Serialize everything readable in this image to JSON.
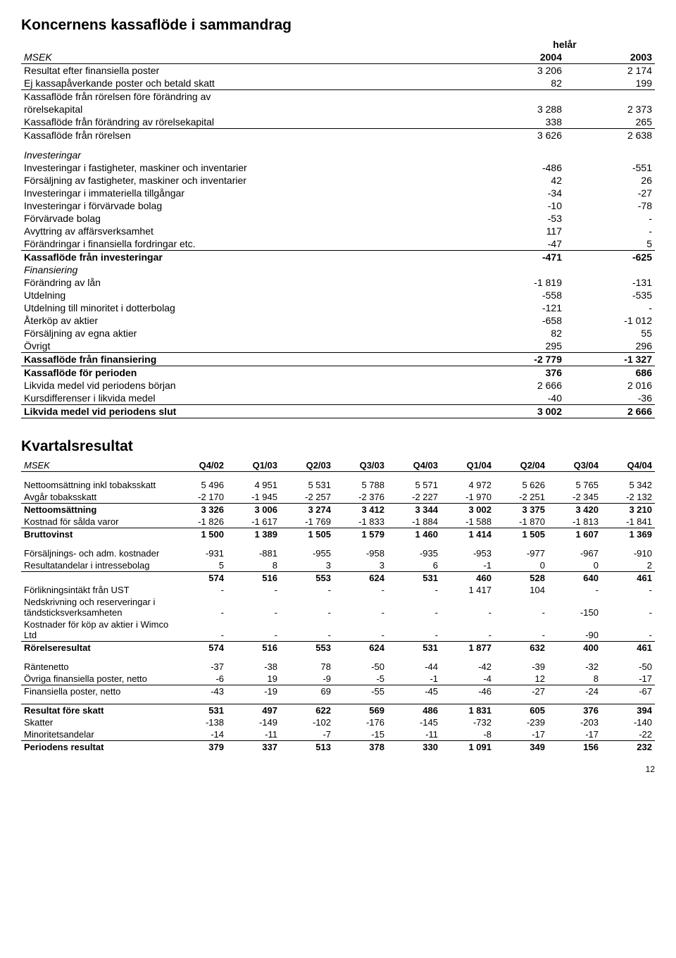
{
  "cashflow": {
    "title": "Koncernens kassaflöde i sammandrag",
    "period_header": "helår",
    "row_header": "MSEK",
    "col1": "2004",
    "col2": "2003",
    "rows": [
      {
        "label": "Resultat efter finansiella poster",
        "v": [
          "3 206",
          "2 174"
        ]
      },
      {
        "label": "Ej kassapåverkande poster och betald skatt",
        "v": [
          "82",
          "199"
        ],
        "under": true
      },
      {
        "label": "Kassaflöde från rörelsen före förändring av",
        "v": [
          "",
          ""
        ]
      },
      {
        "label": "rörelsekapital",
        "v": [
          "3 288",
          "2 373"
        ]
      },
      {
        "label": "Kassaflöde från förändring av rörelsekapital",
        "v": [
          "338",
          "265"
        ],
        "under": true
      },
      {
        "label": "Kassaflöde från rörelsen",
        "v": [
          "3 626",
          "2 638"
        ]
      },
      {
        "label": "Investeringar",
        "v": [
          "",
          ""
        ],
        "italic": true,
        "spacer_before": true
      },
      {
        "label": "Investeringar i fastigheter, maskiner och inventarier",
        "v": [
          "-486",
          "-551"
        ]
      },
      {
        "label": "Försäljning av fastigheter, maskiner och inventarier",
        "v": [
          "42",
          "26"
        ]
      },
      {
        "label": "Investeringar i immateriella tillgångar",
        "v": [
          "-34",
          "-27"
        ]
      },
      {
        "label": "Investeringar i förvärvade bolag",
        "v": [
          "-10",
          "-78"
        ]
      },
      {
        "label": "Förvärvade bolag",
        "v": [
          "-53",
          "-"
        ]
      },
      {
        "label": "Avyttring av affärsverksamhet",
        "v": [
          "117",
          "-"
        ]
      },
      {
        "label": "Förändringar i finansiella fordringar etc.",
        "v": [
          "-47",
          "5"
        ],
        "under": true
      },
      {
        "label": "Kassaflöde från investeringar",
        "v": [
          "-471",
          "-625"
        ],
        "bold": true
      },
      {
        "label": "Finansiering",
        "v": [
          "",
          ""
        ],
        "italic": true
      },
      {
        "label": "Förändring av lån",
        "v": [
          "-1 819",
          "-131"
        ]
      },
      {
        "label": "Utdelning",
        "v": [
          "-558",
          "-535"
        ]
      },
      {
        "label": "Utdelning till minoritet i dotterbolag",
        "v": [
          "-121",
          "-"
        ]
      },
      {
        "label": "Återköp av aktier",
        "v": [
          "-658",
          "-1 012"
        ]
      },
      {
        "label": "Försäljning av egna aktier",
        "v": [
          "82",
          "55"
        ]
      },
      {
        "label": "Övrigt",
        "v": [
          "295",
          "296"
        ],
        "under": true
      },
      {
        "label": "Kassaflöde från finansiering",
        "v": [
          "-2 779",
          "-1 327"
        ],
        "bold": true,
        "under": true
      },
      {
        "label": "Kassaflöde för perioden",
        "v": [
          "376",
          "686"
        ],
        "bold": true
      },
      {
        "label": "Likvida medel vid periodens början",
        "v": [
          "2 666",
          "2 016"
        ]
      },
      {
        "label": "Kursdifferenser i likvida medel",
        "v": [
          "-40",
          "-36"
        ],
        "under": true
      },
      {
        "label": "Likvida medel vid periodens slut",
        "v": [
          "3 002",
          "2 666"
        ],
        "bold": true,
        "under": true
      }
    ]
  },
  "quarterly": {
    "title": "Kvartalsresultat",
    "row_header": "MSEK",
    "cols": [
      "Q4/02",
      "Q1/03",
      "Q2/03",
      "Q3/03",
      "Q4/03",
      "Q1/04",
      "Q2/04",
      "Q3/04",
      "Q4/04"
    ],
    "rows": [
      {
        "label": "Nettoomsättning inkl tobaksskatt",
        "v": [
          "5 496",
          "4 951",
          "5 531",
          "5 788",
          "5 571",
          "4 972",
          "5 626",
          "5 765",
          "5 342"
        ],
        "spacer_before": true
      },
      {
        "label": "Avgår tobaksskatt",
        "v": [
          "-2 170",
          "-1 945",
          "-2 257",
          "-2 376",
          "-2 227",
          "-1 970",
          "-2 251",
          "-2 345",
          "-2 132"
        ],
        "under": true
      },
      {
        "label": "Nettoomsättning",
        "v": [
          "3 326",
          "3 006",
          "3 274",
          "3 412",
          "3 344",
          "3 002",
          "3 375",
          "3 420",
          "3 210"
        ],
        "bold": true
      },
      {
        "label": "Kostnad för sålda varor",
        "v": [
          "-1 826",
          "-1 617",
          "-1 769",
          "-1 833",
          "-1 884",
          "-1 588",
          "-1 870",
          "-1 813",
          "-1 841"
        ],
        "under": true
      },
      {
        "label": "Bruttovinst",
        "v": [
          "1 500",
          "1 389",
          "1 505",
          "1 579",
          "1 460",
          "1 414",
          "1 505",
          "1 607",
          "1 369"
        ],
        "bold": true
      },
      {
        "label": "Försäljnings- och adm. kostnader",
        "v": [
          "-931",
          "-881",
          "-955",
          "-958",
          "-935",
          "-953",
          "-977",
          "-967",
          "-910"
        ],
        "spacer_before": true
      },
      {
        "label": "Resultatandelar i intressebolag",
        "v": [
          "5",
          "8",
          "3",
          "3",
          "6",
          "-1",
          "0",
          "0",
          "2"
        ],
        "under": true
      },
      {
        "label": "",
        "v": [
          "574",
          "516",
          "553",
          "624",
          "531",
          "460",
          "528",
          "640",
          "461"
        ],
        "bold": true
      },
      {
        "label": "Förlikningsintäkt från UST",
        "v": [
          "-",
          "-",
          "-",
          "-",
          "-",
          "1 417",
          "104",
          "-",
          "-"
        ]
      },
      {
        "label": "Nedskrivning och reserveringar i tändsticksverksamheten",
        "v": [
          "-",
          "-",
          "-",
          "-",
          "-",
          "-",
          "-",
          "-150",
          "-"
        ]
      },
      {
        "label": "Kostnader för köp av aktier i Wimco Ltd",
        "v": [
          "-",
          "-",
          "-",
          "-",
          "-",
          "-",
          "-",
          "-90",
          "-"
        ],
        "under": true
      },
      {
        "label": "Rörelseresultat",
        "v": [
          "574",
          "516",
          "553",
          "624",
          "531",
          "1 877",
          "632",
          "400",
          "461"
        ],
        "bold": true
      },
      {
        "label": "Räntenetto",
        "v": [
          "-37",
          "-38",
          "78",
          "-50",
          "-44",
          "-42",
          "-39",
          "-32",
          "-50"
        ],
        "spacer_before": true
      },
      {
        "label": "Övriga finansiella poster, netto",
        "v": [
          "-6",
          "19",
          "-9",
          "-5",
          "-1",
          "-4",
          "12",
          "8",
          "-17"
        ],
        "under": true
      },
      {
        "label": "Finansiella poster, netto",
        "v": [
          "-43",
          "-19",
          "69",
          "-55",
          "-45",
          "-46",
          "-27",
          "-24",
          "-67"
        ]
      },
      {
        "label": "Resultat före skatt",
        "v": [
          "531",
          "497",
          "622",
          "569",
          "486",
          "1 831",
          "605",
          "376",
          "394"
        ],
        "bold": true,
        "spacer_before": true,
        "over": true
      },
      {
        "label": "Skatter",
        "v": [
          "-138",
          "-149",
          "-102",
          "-176",
          "-145",
          "-732",
          "-239",
          "-203",
          "-140"
        ]
      },
      {
        "label": "Minoritetsandelar",
        "v": [
          "-14",
          "-11",
          "-7",
          "-15",
          "-11",
          "-8",
          "-17",
          "-17",
          "-22"
        ],
        "under": true
      },
      {
        "label": "Periodens resultat",
        "v": [
          "379",
          "337",
          "513",
          "378",
          "330",
          "1 091",
          "349",
          "156",
          "232"
        ],
        "bold": true
      }
    ]
  },
  "page_number": "12"
}
